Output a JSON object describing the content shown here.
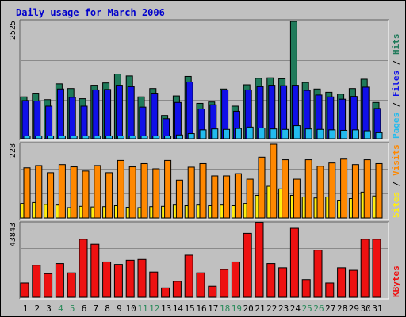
{
  "colors": {
    "background": "#c0c0c0",
    "panel": "#c0c0c0",
    "border": "#000000",
    "title": "#0000cc",
    "hits": "#1f7a5a",
    "files": "#1010e8",
    "pages": "#22bbee",
    "visits": "#ff8800",
    "sites": "#ffee11",
    "kbytes": "#ee1111",
    "weekend_label": "#2a8a5a",
    "weekday_label": "#000000"
  },
  "chart_data": [
    {
      "type": "bar",
      "title": "Daily usage for March 2006",
      "ymax_label": "2525",
      "ymax": 2525,
      "legend": [
        {
          "key": "pages",
          "text": "Pages",
          "color": "#22bbee"
        },
        {
          "key": "files",
          "text": "Files",
          "color": "#1010e8"
        },
        {
          "key": "hits",
          "text": "Hits",
          "color": "#1f7a5a"
        }
      ],
      "x": [
        "1",
        "2",
        "3",
        "4",
        "5",
        "6",
        "7",
        "8",
        "9",
        "10",
        "11",
        "12",
        "13",
        "14",
        "15",
        "16",
        "17",
        "18",
        "19",
        "20",
        "21",
        "22",
        "23",
        "24",
        "25",
        "26",
        "27",
        "28",
        "29",
        "30",
        "31"
      ],
      "weekend": [
        false,
        false,
        false,
        true,
        true,
        false,
        false,
        false,
        false,
        false,
        true,
        true,
        false,
        false,
        false,
        false,
        false,
        true,
        true,
        false,
        false,
        false,
        false,
        false,
        true,
        true,
        false,
        false,
        false,
        false,
        false
      ],
      "series": [
        {
          "name": "Hits",
          "values": [
            900,
            980,
            840,
            1180,
            1080,
            860,
            1150,
            1200,
            1390,
            1350,
            900,
            1080,
            500,
            920,
            1340,
            760,
            790,
            1070,
            700,
            1160,
            1300,
            1310,
            1290,
            2525,
            1210,
            1070,
            1000,
            960,
            1080,
            1280,
            780
          ]
        },
        {
          "name": "Files",
          "values": [
            820,
            810,
            700,
            1070,
            890,
            700,
            1050,
            1060,
            1150,
            1120,
            680,
            980,
            430,
            780,
            1220,
            640,
            730,
            1050,
            590,
            1050,
            1120,
            1150,
            1140,
            1150,
            1040,
            940,
            900,
            850,
            910,
            1110,
            650
          ]
        },
        {
          "name": "Pages",
          "values": [
            60,
            60,
            60,
            60,
            60,
            60,
            60,
            60,
            60,
            60,
            60,
            60,
            60,
            80,
            110,
            190,
            210,
            200,
            220,
            250,
            230,
            210,
            200,
            280,
            210,
            200,
            190,
            180,
            190,
            170,
            130
          ]
        }
      ]
    },
    {
      "type": "bar",
      "ymax_label": "228",
      "ymax": 228,
      "legend": [
        {
          "key": "sites",
          "text": "Sites",
          "color": "#ffee11"
        },
        {
          "key": "visits",
          "text": "Visits",
          "color": "#ff8800"
        }
      ],
      "x": [
        "1",
        "2",
        "3",
        "4",
        "5",
        "6",
        "7",
        "8",
        "9",
        "10",
        "11",
        "12",
        "13",
        "14",
        "15",
        "16",
        "17",
        "18",
        "19",
        "20",
        "21",
        "22",
        "23",
        "24",
        "25",
        "26",
        "27",
        "28",
        "29",
        "30",
        "31"
      ],
      "series": [
        {
          "name": "Visits",
          "values": [
            155,
            162,
            140,
            165,
            158,
            145,
            162,
            140,
            178,
            158,
            168,
            152,
            178,
            117,
            157,
            168,
            130,
            130,
            137,
            120,
            188,
            228,
            180,
            120,
            180,
            160,
            170,
            182,
            165,
            180,
            168
          ]
        },
        {
          "name": "Sites",
          "values": [
            45,
            48,
            42,
            40,
            32,
            36,
            34,
            35,
            38,
            33,
            32,
            35,
            36,
            40,
            38,
            40,
            38,
            40,
            38,
            45,
            70,
            98,
            90,
            70,
            65,
            62,
            65,
            55,
            60,
            80,
            68
          ]
        }
      ]
    },
    {
      "type": "bar",
      "ymax_label": "43843",
      "ymax": 43843,
      "legend": [
        {
          "key": "kbytes",
          "text": "KBytes",
          "color": "#ee1111"
        }
      ],
      "x": [
        "1",
        "2",
        "3",
        "4",
        "5",
        "6",
        "7",
        "8",
        "9",
        "10",
        "11",
        "12",
        "13",
        "14",
        "15",
        "16",
        "17",
        "18",
        "19",
        "20",
        "21",
        "22",
        "23",
        "24",
        "25",
        "26",
        "27",
        "28",
        "29",
        "30",
        "31"
      ],
      "series": [
        {
          "name": "KBytes",
          "values": [
            8500,
            19000,
            14000,
            20000,
            14500,
            34500,
            31500,
            21000,
            19500,
            22000,
            22500,
            15000,
            5500,
            9500,
            25000,
            14500,
            6500,
            16500,
            21000,
            38000,
            44500,
            20000,
            17500,
            41000,
            10500,
            28000,
            8500,
            17500,
            16000,
            34500,
            34500
          ]
        }
      ]
    }
  ]
}
